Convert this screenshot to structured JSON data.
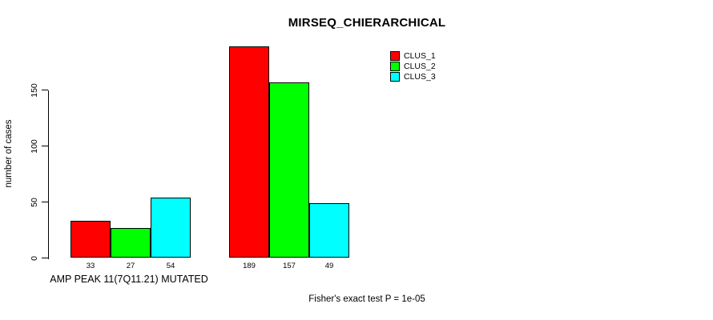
{
  "chart_data": {
    "type": "bar",
    "title": "MIRSEQ_CHIERARCHICAL",
    "ylabel": "number of cases",
    "xlabel": "",
    "categories": [
      "AMP PEAK 11(7Q11.21) MUTATED",
      ""
    ],
    "series": [
      {
        "name": "CLUS_1",
        "color": "#ff0000",
        "values": [
          33,
          189
        ]
      },
      {
        "name": "CLUS_2",
        "color": "#00ff00",
        "values": [
          27,
          157
        ]
      },
      {
        "name": "CLUS_3",
        "color": "#00ffff",
        "values": [
          54,
          49
        ]
      }
    ],
    "bar_value_labels": [
      [
        33,
        27,
        54
      ],
      [
        189,
        157,
        49
      ]
    ],
    "yticks": [
      0,
      50,
      100,
      150
    ],
    "ylim": [
      0,
      195
    ],
    "grid": false,
    "legend_position": "top-right",
    "legend_border": false,
    "annotation": "Fisher's exact test P = 1e-05",
    "axis_color": "#000000",
    "bar_border_color": "#000000",
    "background_color": "#ffffff"
  }
}
